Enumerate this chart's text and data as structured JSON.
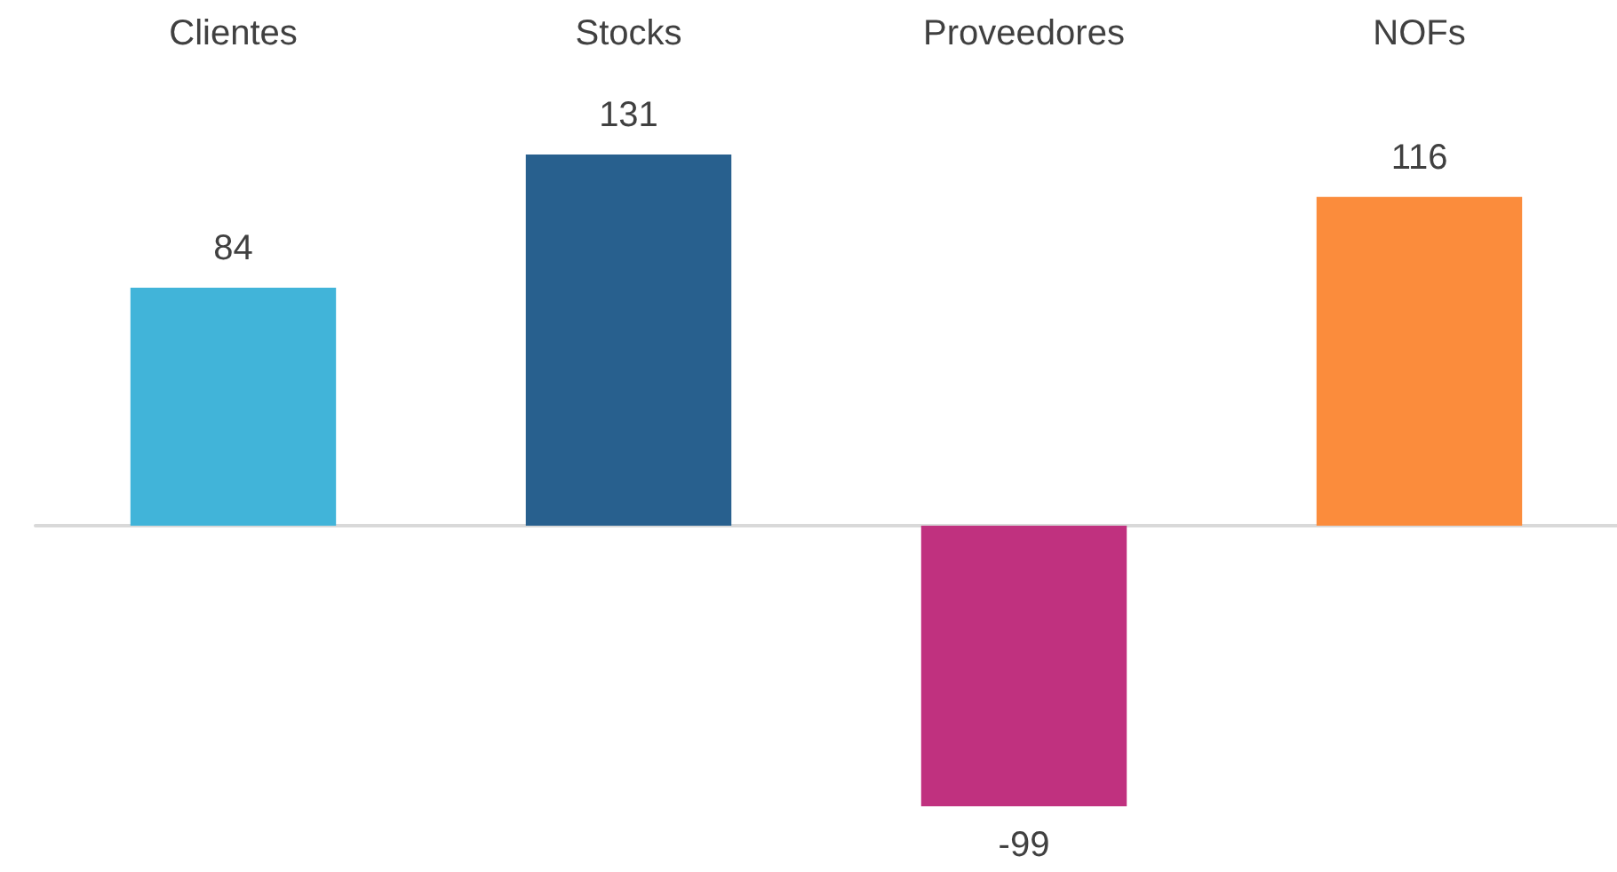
{
  "chart_data": {
    "type": "bar",
    "categories": [
      "Clientes",
      "Stocks",
      "Proveedores",
      "NOFs"
    ],
    "values": [
      84,
      131,
      -99,
      116
    ],
    "colors": [
      "#41b4d9",
      "#28608e",
      "#c0317f",
      "#fb8c3c"
    ],
    "data_labels": true
  }
}
